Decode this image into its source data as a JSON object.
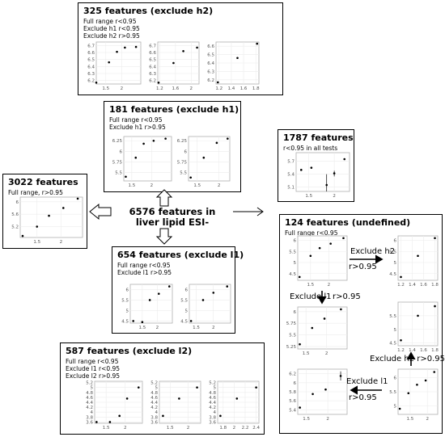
{
  "center_label": [
    "6576 features in",
    "liver lipid ESI-"
  ],
  "boxes": {
    "b325": {
      "title": "325 features (exclude h2)",
      "lines": [
        "Full range r<0.95",
        "Exclude h1 r<0.95",
        "Exclude h2 r>0.95"
      ]
    },
    "b181": {
      "title": "181 features (exclude h1)",
      "lines": [
        "Full range r<0.95",
        "Exclude h1 r>0.95"
      ]
    },
    "b1787": {
      "title": "1787 features",
      "lines": [
        "r<0.95 in all tests"
      ]
    },
    "b3022": {
      "title": "3022 features",
      "lines": [
        "Full range, r>0.95"
      ]
    },
    "b654": {
      "title": "654 features (exclude l1)",
      "lines": [
        "Full range r<0.95",
        "Exclude l1 r>0.95"
      ]
    },
    "b124": {
      "title": "124 features (undefined)",
      "lines": [
        "Full range r<0.95"
      ]
    },
    "b587": {
      "title": "587 features (exclude l2)",
      "lines": [
        "Full range r<0.95",
        "Exclude l1 r<0.95",
        "Exclude l2 r>0.95"
      ]
    }
  },
  "flow_labels": {
    "excl_h2": "Exclude h2",
    "r1": "r>0.95",
    "excl_l1": "Exclude l1",
    "r2": "r>0.95",
    "excl_h2_r": "Exclude h2 r>0.95",
    "excl_l1_b": "Exclude l1",
    "r3": "r>0.95"
  },
  "chart_data": [
    {
      "id": "p325a",
      "type": "scatter",
      "box": "325",
      "xlim": [
        1.2,
        2.6
      ],
      "ylim": [
        6.15,
        6.75
      ],
      "xticks": [
        1.5,
        2.0
      ],
      "yticks": [
        6.2,
        6.3,
        6.4,
        6.5,
        6.6,
        6.7
      ],
      "points": [
        [
          1.2,
          6.17
        ],
        [
          1.6,
          6.46
        ],
        [
          1.85,
          6.61
        ],
        [
          2.1,
          6.67
        ],
        [
          2.45,
          6.68
        ]
      ]
    },
    {
      "id": "p325b",
      "type": "scatter",
      "box": "325",
      "xlim": [
        1.15,
        2.2
      ],
      "ylim": [
        6.15,
        6.75
      ],
      "xticks": [
        1.2,
        1.6,
        2.0
      ],
      "yticks": [
        6.2,
        6.3,
        6.4,
        6.5,
        6.6,
        6.7
      ],
      "points": [
        [
          1.17,
          6.17
        ],
        [
          1.55,
          6.45
        ],
        [
          1.8,
          6.62
        ],
        [
          2.15,
          6.67
        ]
      ]
    },
    {
      "id": "p325c",
      "type": "scatter",
      "box": "325",
      "xlim": [
        1.15,
        1.85
      ],
      "ylim": [
        6.15,
        6.65
      ],
      "xticks": [
        1.2,
        1.4,
        1.6,
        1.8
      ],
      "yticks": [
        6.2,
        6.3,
        6.4,
        6.5,
        6.6
      ],
      "points": [
        [
          1.18,
          6.17
        ],
        [
          1.5,
          6.46
        ],
        [
          1.82,
          6.63
        ]
      ]
    },
    {
      "id": "p181a",
      "type": "scatter",
      "box": "181",
      "xlim": [
        1.3,
        2.5
      ],
      "ylim": [
        5.3,
        6.35
      ],
      "xticks": [
        1.5,
        2.0
      ],
      "yticks": [
        5.5,
        5.75,
        6.0,
        6.25
      ],
      "points": [
        [
          1.35,
          5.4
        ],
        [
          1.6,
          5.85
        ],
        [
          1.8,
          6.18
        ],
        [
          2.05,
          6.25
        ],
        [
          2.35,
          6.3
        ]
      ]
    },
    {
      "id": "p181b",
      "type": "scatter",
      "box": "181",
      "xlim": [
        1.3,
        2.25
      ],
      "ylim": [
        5.3,
        6.35
      ],
      "xticks": [
        1.5,
        2.0
      ],
      "yticks": [
        5.5,
        5.75,
        6.0,
        6.25
      ],
      "points": [
        [
          1.35,
          5.38
        ],
        [
          1.65,
          5.85
        ],
        [
          1.95,
          6.2
        ],
        [
          2.2,
          6.3
        ]
      ]
    },
    {
      "id": "p1787",
      "type": "scatter",
      "box": "1787",
      "xlim": [
        1.25,
        2.3
      ],
      "ylim": [
        5.0,
        5.9
      ],
      "xticks": [
        1.5,
        2.0
      ],
      "yticks": [
        5.1,
        5.4,
        5.7
      ],
      "points": [
        [
          1.35,
          5.5
        ],
        [
          1.55,
          5.55
        ],
        [
          1.85,
          5.15
        ],
        [
          2.0,
          5.42
        ],
        [
          2.2,
          5.75
        ]
      ],
      "err": [
        [
          1.85,
          5.0,
          5.4
        ],
        [
          2.0,
          5.35,
          5.48
        ]
      ]
    },
    {
      "id": "p3022",
      "type": "scatter",
      "box": "3022",
      "xlim": [
        1.15,
        2.45
      ],
      "ylim": [
        4.85,
        6.15
      ],
      "xticks": [
        1.5,
        2.0
      ],
      "yticks": [
        5.2,
        5.6,
        6.0
      ],
      "points": [
        [
          1.2,
          4.9
        ],
        [
          1.5,
          5.2
        ],
        [
          1.75,
          5.55
        ],
        [
          2.05,
          5.8
        ],
        [
          2.35,
          6.1
        ]
      ]
    },
    {
      "id": "p654a",
      "type": "scatter",
      "box": "654",
      "xlim": [
        1.1,
        2.5
      ],
      "ylim": [
        4.4,
        6.25
      ],
      "xticks": [
        1.5,
        2.0
      ],
      "yticks": [
        4.5,
        5.0,
        5.5,
        6.0
      ],
      "points": [
        [
          1.2,
          4.5
        ],
        [
          1.5,
          4.45
        ],
        [
          1.75,
          5.5
        ],
        [
          2.05,
          5.8
        ],
        [
          2.4,
          6.15
        ]
      ]
    },
    {
      "id": "p654b",
      "type": "scatter",
      "box": "654",
      "xlim": [
        1.3,
        2.5
      ],
      "ylim": [
        4.4,
        6.25
      ],
      "xticks": [
        1.5,
        2.0
      ],
      "yticks": [
        4.5,
        5.0,
        5.5,
        6.0
      ],
      "points": [
        [
          1.35,
          4.5
        ],
        [
          1.7,
          5.5
        ],
        [
          2.0,
          5.85
        ],
        [
          2.4,
          6.15
        ]
      ]
    },
    {
      "id": "p587a",
      "type": "scatter",
      "box": "587",
      "xlim": [
        1.2,
        2.45
      ],
      "ylim": [
        3.55,
        5.25
      ],
      "xticks": [
        1.5,
        2.0
      ],
      "yticks": [
        3.6,
        3.8,
        4.0,
        4.2,
        4.4,
        4.6,
        4.8,
        5.0,
        5.2
      ],
      "points": [
        [
          1.25,
          3.6
        ],
        [
          1.6,
          3.6
        ],
        [
          1.85,
          3.85
        ],
        [
          2.05,
          4.55
        ],
        [
          2.35,
          5.0
        ]
      ]
    },
    {
      "id": "p587b",
      "type": "scatter",
      "box": "587",
      "xlim": [
        1.2,
        2.35
      ],
      "ylim": [
        3.55,
        5.25
      ],
      "xticks": [
        1.5,
        2.0
      ],
      "yticks": [
        3.6,
        3.8,
        4.0,
        4.2,
        4.4,
        4.6,
        4.8,
        5.0,
        5.2
      ],
      "points": [
        [
          1.3,
          3.85
        ],
        [
          1.75,
          4.55
        ],
        [
          2.25,
          5.0
        ]
      ]
    },
    {
      "id": "p587c",
      "type": "scatter",
      "box": "587",
      "xlim": [
        1.7,
        2.45
      ],
      "ylim": [
        3.55,
        5.25
      ],
      "xticks": [
        1.8,
        2.0,
        2.2,
        2.4
      ],
      "yticks": [
        3.6,
        3.8,
        4.0,
        4.2,
        4.4,
        4.6,
        4.8,
        5.0,
        5.2
      ],
      "points": [
        [
          1.75,
          3.85
        ],
        [
          2.05,
          4.55
        ],
        [
          2.4,
          5.0
        ]
      ]
    },
    {
      "id": "p124a",
      "type": "scatter",
      "box": "124",
      "xlim": [
        1.15,
        2.5
      ],
      "ylim": [
        4.2,
        6.2
      ],
      "xticks": [
        1.5,
        2.0
      ],
      "yticks": [
        4.5,
        5.0,
        5.5,
        6.0
      ],
      "points": [
        [
          1.2,
          4.35
        ],
        [
          1.5,
          5.3
        ],
        [
          1.75,
          5.65
        ],
        [
          2.05,
          5.85
        ],
        [
          2.4,
          6.1
        ]
      ]
    },
    {
      "id": "p124b",
      "type": "scatter",
      "box": "124",
      "xlim": [
        1.15,
        1.85
      ],
      "ylim": [
        4.2,
        6.2
      ],
      "xticks": [
        1.2,
        1.4,
        1.6,
        1.8
      ],
      "yticks": [
        4.5,
        5.0,
        5.5,
        6.0
      ],
      "points": [
        [
          1.2,
          4.35
        ],
        [
          1.5,
          5.3
        ],
        [
          1.8,
          6.1
        ]
      ]
    },
    {
      "id": "p124c",
      "type": "scatter",
      "box": "124",
      "xlim": [
        1.3,
        2.5
      ],
      "ylim": [
        5.2,
        6.1
      ],
      "xticks": [
        1.5,
        2.0
      ],
      "yticks": [
        5.25,
        5.5,
        5.75,
        6.0
      ],
      "points": [
        [
          1.35,
          5.3
        ],
        [
          1.65,
          5.65
        ],
        [
          1.95,
          5.85
        ],
        [
          2.35,
          6.05
        ]
      ]
    },
    {
      "id": "p124d",
      "type": "scatter",
      "box": "124",
      "xlim": [
        1.15,
        1.85
      ],
      "ylim": [
        4.4,
        6.0
      ],
      "xticks": [
        1.2,
        1.4,
        1.6,
        1.8
      ],
      "yticks": [
        4.5,
        5.0,
        5.5
      ],
      "points": [
        [
          1.2,
          4.6
        ],
        [
          1.5,
          5.5
        ],
        [
          1.8,
          5.85
        ]
      ]
    },
    {
      "id": "p124e",
      "type": "scatter",
      "box": "124",
      "xlim": [
        1.3,
        2.45
      ],
      "ylim": [
        5.3,
        6.3
      ],
      "xticks": [
        1.5,
        2.0
      ],
      "yticks": [
        5.4,
        5.6,
        5.8,
        6.0,
        6.2
      ],
      "points": [
        [
          1.35,
          5.45
        ],
        [
          1.65,
          5.75
        ],
        [
          1.95,
          5.85
        ],
        [
          2.3,
          6.15
        ]
      ],
      "err": [
        [
          2.3,
          6.05,
          6.25
        ]
      ]
    },
    {
      "id": "p124f",
      "type": "scatter",
      "box": "124",
      "xlim": [
        1.15,
        2.3
      ],
      "ylim": [
        4.7,
        6.3
      ],
      "xticks": [
        1.5,
        2.0
      ],
      "yticks": [
        5.0,
        5.5,
        6.0
      ],
      "points": [
        [
          1.2,
          4.9
        ],
        [
          1.45,
          5.45
        ],
        [
          1.7,
          5.75
        ],
        [
          1.95,
          5.9
        ],
        [
          2.2,
          6.2
        ]
      ]
    }
  ]
}
